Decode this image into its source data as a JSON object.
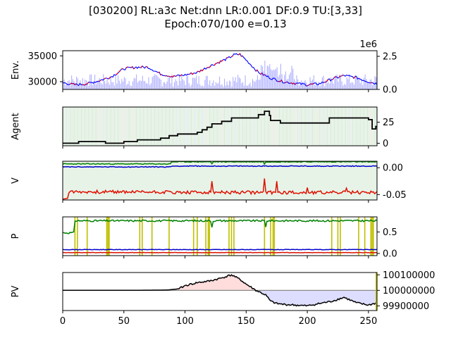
{
  "title": {
    "line1": "[030200] RL:a3c Net:dnn LR:0.001 DF:0.9 TU:[3,33]",
    "line2": "Epoch:070/100 e=0.13"
  },
  "colors": {
    "price_up": "#ff0000",
    "price_down": "#0000ff",
    "volume": "#aaaaff",
    "agent_line": "#000000",
    "value_high": "#008000",
    "value_mid": "#0000cc",
    "value_low": "#dd1100",
    "action_mark": "#bfbf00",
    "pv_gain_fill": "#ffdddd",
    "pv_loss_fill": "#ddddff",
    "bg_hold": "#e8f3e8"
  },
  "chart_data": [
    {
      "id": "env",
      "type": "line",
      "ylabel": "Env.",
      "x_range": [
        0,
        257
      ],
      "y_left_ticks": [
        "35000",
        "30000"
      ],
      "y_left_range": [
        28500,
        36000
      ],
      "y_right_ticks": [
        "0.0",
        "2.5"
      ],
      "y_right_multiplier": "1e6",
      "price_keypoints": {
        "x": [
          0,
          10,
          20,
          30,
          40,
          50,
          60,
          70,
          80,
          90,
          100,
          110,
          120,
          130,
          135,
          140,
          145,
          150,
          160,
          170,
          180,
          190,
          200,
          210,
          220,
          230,
          240,
          250,
          257
        ],
        "y": [
          29800,
          29400,
          29600,
          30200,
          31000,
          32500,
          32800,
          32800,
          31500,
          31000,
          31300,
          31800,
          33000,
          34000,
          34500,
          35200,
          35300,
          34200,
          31800,
          30700,
          30000,
          29700,
          29400,
          29600,
          30500,
          31200,
          30800,
          30000,
          29600
        ]
      }
    },
    {
      "id": "agent",
      "type": "line",
      "ylabel": "Agent",
      "x_range": [
        0,
        257
      ],
      "y_ticks": [
        "0",
        "25"
      ],
      "y_range": [
        -3,
        43
      ],
      "position_steps": {
        "x": [
          0,
          13,
          35,
          50,
          61,
          80,
          87,
          94,
          110,
          114,
          118,
          122,
          130,
          138,
          160,
          165,
          169,
          170,
          178,
          200,
          218,
          245,
          250,
          253,
          256
        ],
        "y": [
          0,
          2,
          0,
          2,
          4,
          6,
          9,
          11,
          13,
          16,
          19,
          23,
          26,
          30,
          34,
          38,
          33,
          27,
          24,
          24,
          30,
          30,
          28,
          17,
          20
        ]
      }
    },
    {
      "id": "value",
      "type": "line",
      "ylabel": "V",
      "x_range": [
        0,
        257
      ],
      "y_ticks": [
        "0.00",
        "-0.05"
      ],
      "y_range": [
        -0.06,
        0.012
      ],
      "series": [
        {
          "color_key": "value_high",
          "base": 0.007,
          "late": 0.011
        },
        {
          "color_key": "value_mid",
          "base": 0.0015,
          "late": 0.003
        },
        {
          "color_key": "value_low",
          "base": -0.045,
          "late": -0.046,
          "spikes_x": [
            122,
            165,
            175,
            200,
            232
          ],
          "spikes_y": [
            -0.025,
            -0.02,
            -0.025,
            -0.037,
            -0.038
          ]
        }
      ]
    },
    {
      "id": "policy",
      "type": "line",
      "ylabel": "P",
      "x_range": [
        0,
        257
      ],
      "y_ticks": [
        "0.5",
        "0.0"
      ],
      "y_range": [
        -0.05,
        0.85
      ],
      "series": [
        {
          "color_key": "value_high",
          "start": 0.48,
          "level": 0.76
        },
        {
          "color_key": "value_mid",
          "level": 0.09
        },
        {
          "color_key": "value_low",
          "level": 0.02
        }
      ],
      "action_marks_x": [
        10,
        12,
        20,
        36,
        37,
        38,
        63,
        65,
        73,
        87,
        107,
        110,
        117,
        119,
        120,
        136,
        138,
        140,
        165,
        170,
        172,
        173,
        220,
        225,
        227,
        242,
        247,
        252,
        253,
        254
      ]
    },
    {
      "id": "pv",
      "type": "area",
      "ylabel": "PV",
      "x_range": [
        0,
        257
      ],
      "x_ticks": [
        "0",
        "50",
        "100",
        "150",
        "200",
        "250"
      ],
      "x_tick_values": [
        0,
        50,
        100,
        150,
        200,
        250
      ],
      "y_ticks": [
        "100100000",
        "100000000",
        "99900000"
      ],
      "y_tick_values": [
        100100000,
        100000000,
        99900000
      ],
      "y_range": [
        99870000,
        100115000
      ],
      "baseline": 100000000,
      "keypoints": {
        "x": [
          0,
          50,
          85,
          95,
          100,
          110,
          120,
          130,
          138,
          145,
          150,
          158,
          162,
          166,
          170,
          175,
          180,
          190,
          200,
          210,
          220,
          230,
          240,
          250,
          257
        ],
        "y": [
          100000000,
          100000000,
          100002000,
          100010000,
          100030000,
          100050000,
          100060000,
          100080000,
          100100000,
          100070000,
          100040000,
          100000000,
          99985000,
          99970000,
          99930000,
          99915000,
          99910000,
          99905000,
          99900000,
          99915000,
          99930000,
          99955000,
          99920000,
          99905000,
          99920000
        ]
      }
    }
  ]
}
